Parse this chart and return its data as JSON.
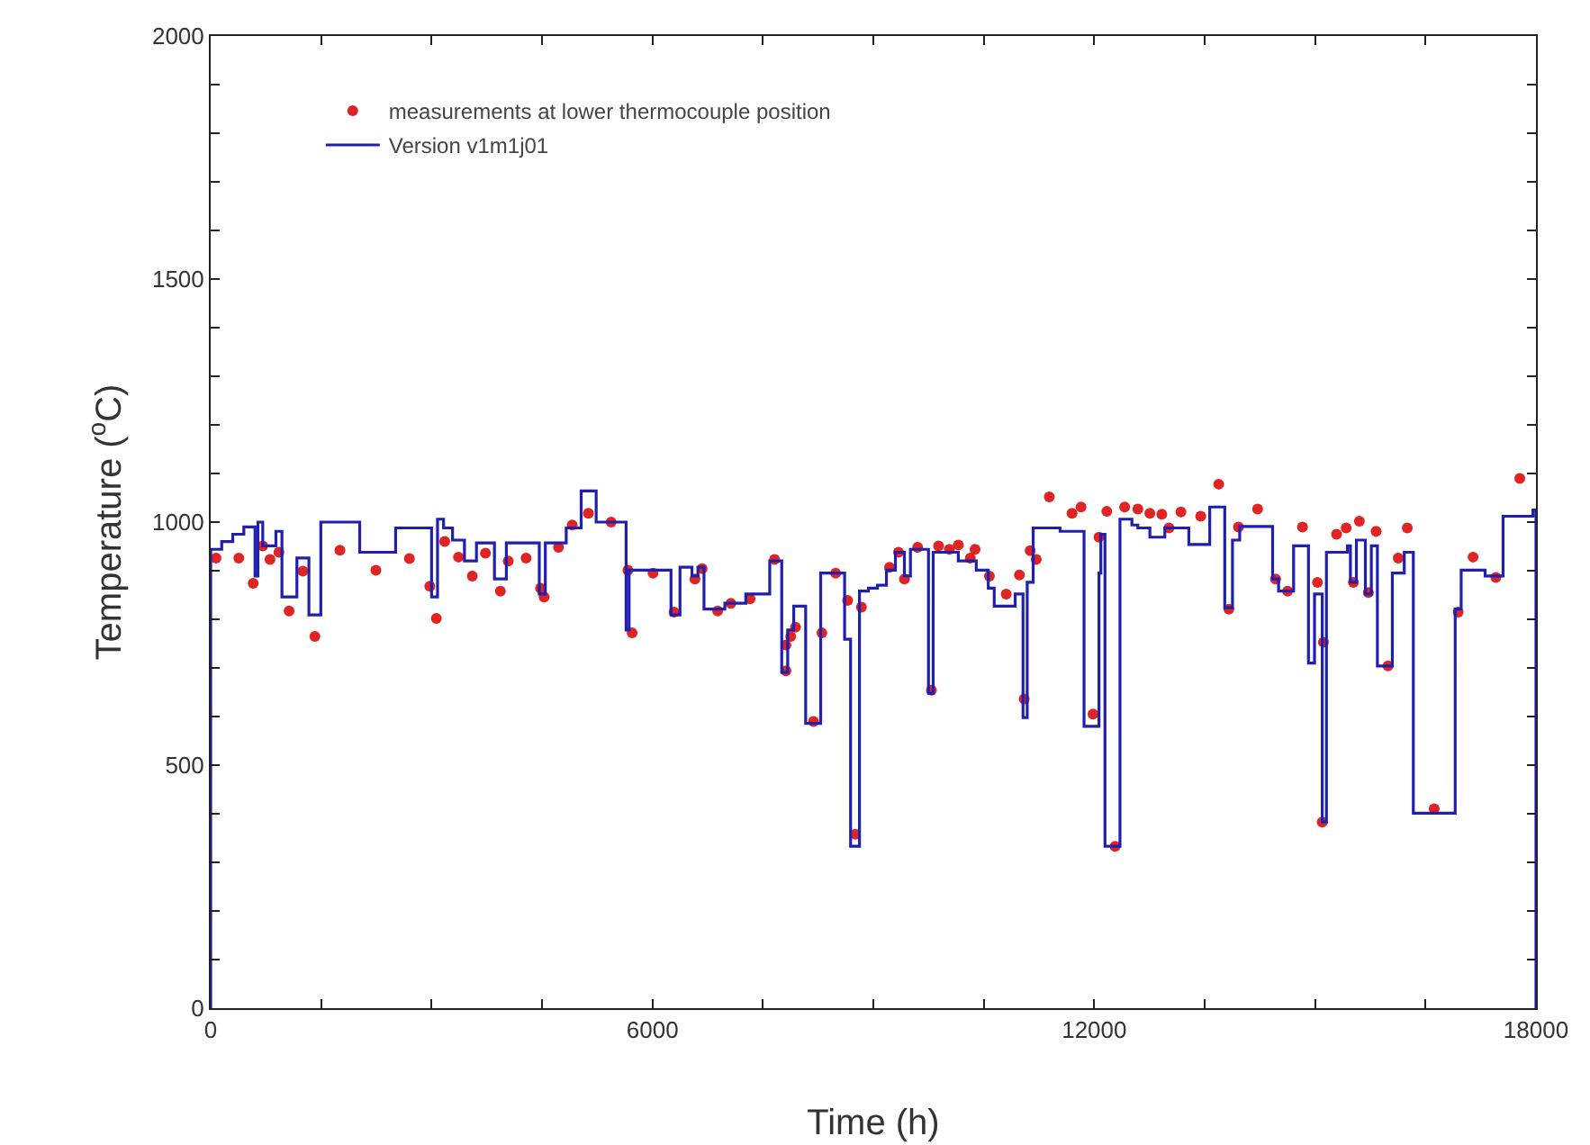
{
  "chart_data": {
    "type": "scatter",
    "xlabel": "Time (h)",
    "ylabel": "Temperature ($^{o}$C)",
    "xlim": [
      0,
      18000
    ],
    "ylim": [
      0,
      2000
    ],
    "xticks": [
      0,
      {
        "value": 1500,
        "label": null
      },
      {
        "value": 3000,
        "label": null
      },
      {
        "value": 4500,
        "label": null
      },
      6000,
      {
        "value": 7500,
        "label": null
      },
      {
        "value": 9000,
        "label": null
      },
      {
        "value": 10500,
        "label": null
      },
      12000,
      {
        "value": 13500,
        "label": null
      },
      {
        "value": 15000,
        "label": null
      },
      {
        "value": 16500,
        "label": null
      },
      18000
    ],
    "yticks": [
      0,
      {
        "value": 100,
        "label": null
      },
      {
        "value": 200,
        "label": null
      },
      {
        "value": 300,
        "label": null
      },
      {
        "value": 400,
        "label": null
      },
      500,
      {
        "value": 600,
        "label": null
      },
      {
        "value": 700,
        "label": null
      },
      {
        "value": 800,
        "label": null
      },
      {
        "value": 900,
        "label": null
      },
      1000,
      {
        "value": 1100,
        "label": null
      },
      {
        "value": 1200,
        "label": null
      },
      {
        "value": 1300,
        "label": null
      },
      {
        "value": 1400,
        "label": null
      },
      1500,
      {
        "value": 1600,
        "label": null
      },
      {
        "value": 1700,
        "label": null
      },
      {
        "value": 1800,
        "label": null
      },
      {
        "value": 1900,
        "label": null
      },
      2000
    ],
    "grid": false,
    "legend": "top left",
    "series": [
      {
        "name": "measurements at lower thermocouple position",
        "type": "scatter",
        "marker": "circle",
        "color": "#e02424",
        "x": [
          73,
          382,
          577,
          707,
          805,
          927,
          1065,
          1252,
          1415,
          1756,
          2244,
          2699,
          2976,
          3065,
          3179,
          3366,
          3553,
          3732,
          3935,
          4041,
          4284,
          4480,
          4529,
          4724,
          4910,
          5130,
          5439,
          5667,
          5724,
          6008,
          6293,
          6577,
          6675,
          6886,
          7065,
          7325,
          7659,
          7813,
          7813,
          7878,
          7943,
          8187,
          8301,
          8488,
          8651,
          8756,
          8838,
          9220,
          9342,
          9423,
          9602,
          9789,
          9886,
          10033,
          10155,
          10317,
          10382,
          10577,
          10805,
          10984,
          11049,
          11130,
          11212,
          11390,
          11699,
          11821,
          11984,
          12065,
          12171,
          12284,
          12414,
          12593,
          12756,
          12918,
          13016,
          13178,
          13447,
          13691,
          13829,
          13959,
          14219,
          14463,
          14626,
          14829,
          15032,
          15097,
          15113,
          15292,
          15422,
          15520,
          15601,
          15723,
          15829,
          15991,
          16129,
          16252,
          16617,
          16943,
          17146,
          17455,
          17780
        ],
        "values": [
          926,
          926,
          874,
          951,
          923,
          938,
          817,
          899,
          765,
          942,
          901,
          925,
          868,
          802,
          960,
          928,
          889,
          936,
          858,
          920,
          926,
          864,
          846,
          948,
          994,
          1018,
          1000,
          901,
          772,
          895,
          815,
          883,
          904,
          817,
          833,
          842,
          923,
          747,
          694,
          765,
          784,
          590,
          772,
          895,
          839,
          358,
          825,
          907,
          938,
          883,
          948,
          654,
          951,
          944,
          953,
          926,
          944,
          889,
          852,
          891,
          636,
          941,
          923,
          1052,
          1018,
          1031,
          605,
          969,
          1022,
          333,
          1031,
          1027,
          1018,
          1016,
          988,
          1021,
          1012,
          1078,
          821,
          990,
          1027,
          883,
          858,
          990,
          876,
          383,
          753,
          975,
          988,
          876,
          1002,
          855,
          981,
          704,
          926,
          988,
          410,
          815,
          928,
          886,
          1090
        ]
      },
      {
        "name": "Version v1m1j01",
        "type": "step",
        "marker": "none",
        "line_style": "solid",
        "color": "#1f1fb0",
        "x": [
          0,
          0,
          150,
          300,
          450,
          602,
          642,
          707,
          886,
          968,
          1171,
          1334,
          1496,
          2024,
          2512,
          3000,
          3081,
          3163,
          3285,
          3447,
          3610,
          3854,
          4016,
          4463,
          4545,
          4829,
          5032,
          5236,
          5642,
          5683,
          6252,
          6374,
          6537,
          6618,
          6700,
          6983,
          7268,
          7593,
          7756,
          7837,
          7919,
          8081,
          8285,
          8610,
          8691,
          8812,
          8934,
          9056,
          9178,
          9300,
          9422,
          9504,
          9749,
          9813,
          10154,
          10398,
          10561,
          10642,
          10927,
          11033,
          11090,
          11171,
          11537,
          11862,
          12065,
          12090,
          12146,
          12350,
          12512,
          12593,
          12756,
          12959,
          13285,
          13569,
          13773,
          13878,
          13976,
          14423,
          14504,
          14708,
          14910,
          14992,
          15097,
          15154,
          15439,
          15480,
          15561,
          15683,
          15764,
          15846,
          16049,
          16211,
          16334,
          16903,
          16984,
          17309,
          17553,
          17959,
          18000
        ],
        "values": [
          0,
          944,
          960,
          975,
          990,
          889,
          1000,
          951,
          981,
          846,
          926,
          809,
          1000,
          938,
          988,
          846,
          1006,
          988,
          963,
          920,
          957,
          883,
          957,
          852,
          957,
          988,
          1064,
          1000,
          778,
          901,
          809,
          907,
          889,
          907,
          821,
          833,
          852,
          920,
          691,
          778,
          827,
          586,
          895,
          759,
          333,
          858,
          864,
          870,
          901,
          938,
          889,
          944,
          648,
          938,
          920,
          901,
          864,
          827,
          852,
          598,
          876,
          988,
          981,
          580,
          895,
          975,
          333,
          1006,
          994,
          988,
          969,
          988,
          954,
          1031,
          824,
          963,
          991,
          883,
          858,
          951,
          710,
          852,
          383,
          938,
          951,
          876,
          963,
          852,
          951,
          704,
          895,
          938,
          401,
          821,
          901,
          889,
          1012,
          1025,
          0
        ]
      }
    ]
  }
}
